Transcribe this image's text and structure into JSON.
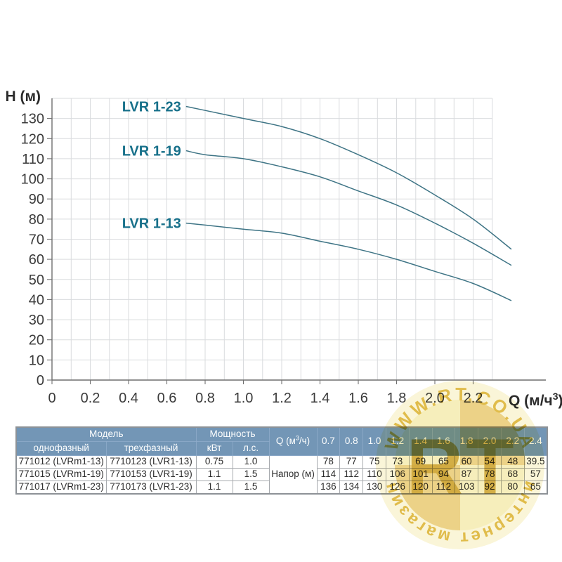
{
  "chart_data": {
    "type": "line",
    "title": "",
    "ylabel": "H (м)",
    "xlabel": "Q (м/ч³)",
    "xlabel_parts": {
      "pre": "Q (м/ч",
      "sup": "3",
      "post": ")"
    },
    "x": [
      0.7,
      0.8,
      1.0,
      1.2,
      1.4,
      1.6,
      1.8,
      2.0,
      2.2,
      2.4
    ],
    "series": [
      {
        "name": "LVR 1-13",
        "values": [
          78,
          77,
          75,
          73,
          69,
          65,
          60,
          54,
          48,
          39.5
        ]
      },
      {
        "name": "LVR 1-19",
        "values": [
          114,
          112,
          110,
          106,
          101,
          94,
          87,
          78,
          68,
          57
        ]
      },
      {
        "name": "LVR 1-23",
        "values": [
          136,
          134,
          130,
          126,
          120,
          112,
          103,
          92,
          80,
          65
        ]
      }
    ],
    "xlim": [
      0,
      2.3
    ],
    "ylim": [
      0,
      140
    ],
    "x_tick_labels": [
      "0",
      "0.2",
      "0.4",
      "0.6",
      "0.8",
      "1.0",
      "1.2",
      "1.4",
      "1.6",
      "1.8",
      "2.0",
      "2.2"
    ],
    "y_tick_step": 10,
    "x_grid_minor_step": 0.1,
    "grid": true,
    "legend_position": "inline-labels",
    "colors": {
      "curve": "#3e7485",
      "series_label": "#17708a",
      "grid": "#d9dbde",
      "axis": "#6f6f6f",
      "tick_text": "#3b3b3b",
      "title_text": "#2b2b2b"
    }
  },
  "table": {
    "header": {
      "model_label": "Модель",
      "power_label": "Мощность",
      "col_single": "однофазный",
      "col_three": "трехфазный",
      "col_kw": "кВт",
      "col_hp": "л.с.",
      "q_label_parts": {
        "pre": "Q (м",
        "sup": "3",
        "post": "/ч)"
      },
      "q_values": [
        "0.7",
        "0.8",
        "1.0",
        "1.2",
        "1.4",
        "1.6",
        "1.8",
        "2.0",
        "2.2",
        "2.4"
      ]
    },
    "napor_label": "Напор (м)",
    "rows": [
      {
        "single": "771012 (LVRm1-13)",
        "three": "7710123 (LVR1-13)",
        "kw": "0.75",
        "hp": "1.0",
        "heads": [
          "78",
          "77",
          "75",
          "73",
          "69",
          "65",
          "60",
          "54",
          "48",
          "39.5"
        ]
      },
      {
        "single": "771015 (LVRm1-19)",
        "three": "7710153 (LVR1-19)",
        "kw": "1.1",
        "hp": "1.5",
        "heads": [
          "114",
          "112",
          "110",
          "106",
          "101",
          "94",
          "87",
          "78",
          "68",
          "57"
        ]
      },
      {
        "single": "771017 (LVRm1-23)",
        "three": "7710173 (LVR1-23)",
        "kw": "1.1",
        "hp": "1.5",
        "heads": [
          "136",
          "134",
          "130",
          "126",
          "120",
          "112",
          "103",
          "92",
          "80",
          "65"
        ]
      }
    ],
    "header_bg": "#7396b6",
    "header_text_color": "#fdfefe"
  },
  "watermark": {
    "top_text": "WWW.RT.CO.UA",
    "bottom_text": "интернет магазин",
    "center_text": "RT",
    "outer_light": "#faf5d8",
    "light": "#f6eebb",
    "dark": "#ecd287",
    "letters": "#cfa63a",
    "text_color": "#e0bc4b"
  }
}
